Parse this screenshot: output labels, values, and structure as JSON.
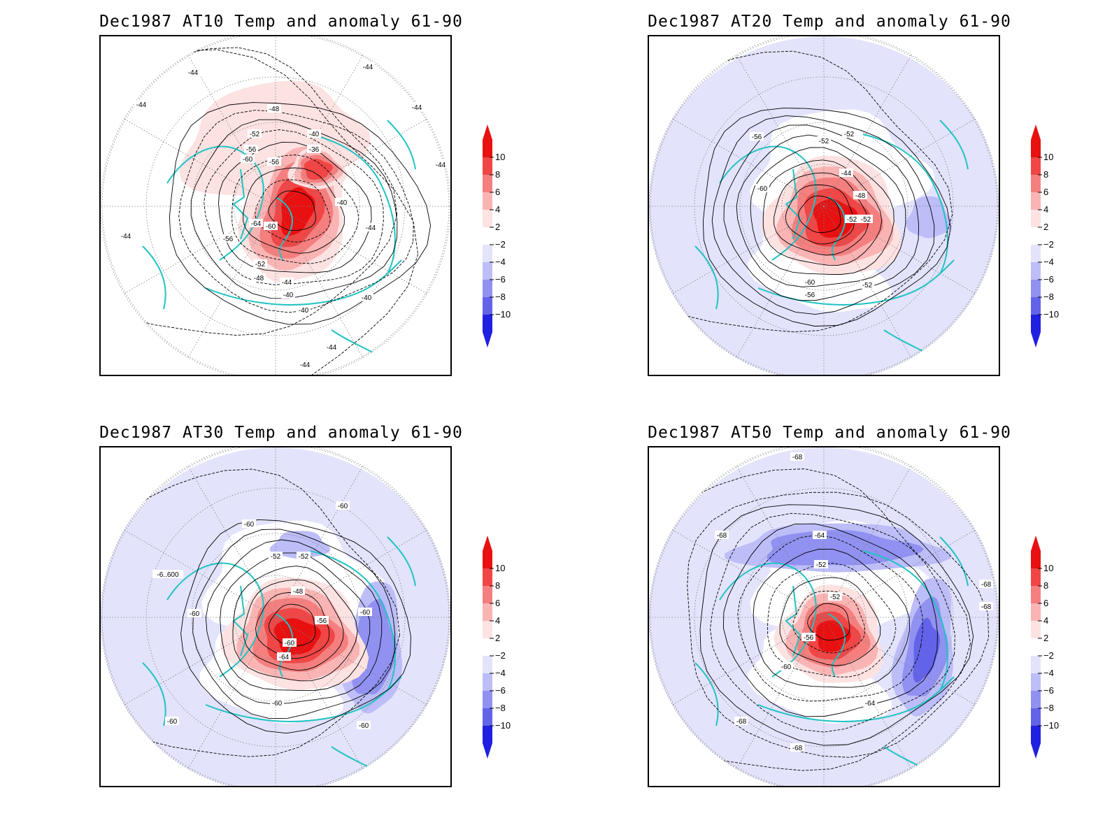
{
  "colors": {
    "pos": [
      "#fde2e2",
      "#fab4b4",
      "#f57f7f",
      "#f04646",
      "#e81010"
    ],
    "neg": [
      "#e3e3fc",
      "#bdbdf8",
      "#9191f1",
      "#6363ea",
      "#2020e0"
    ],
    "coast": "#20c3c3",
    "contour": "#000000"
  },
  "colorbar": {
    "ticks": [
      "10",
      "8",
      "6",
      "4",
      "2",
      "−2",
      "−4",
      "−6",
      "−8",
      "−10"
    ]
  },
  "panels": [
    {
      "title": "Dec1987 AT10 Temp and anomaly 61-90",
      "labels": [
        "-44",
        "-44",
        "-44",
        "-44",
        "-44",
        "-48",
        "-52",
        "-56",
        "-60",
        "-60",
        "-64",
        "-56",
        "-52",
        "-48",
        "-44",
        "-40",
        "-40",
        "-36",
        "-40",
        "-44",
        "-40",
        "-44",
        "-44",
        "-44",
        "-40",
        "-56"
      ]
    },
    {
      "title": "Dec1987 AT20 Temp and anomaly 61-90",
      "labels": [
        "-56",
        "-52",
        "-52",
        "-60",
        "-44",
        "-48",
        "-52",
        "-52",
        "-60",
        "-56",
        "-52"
      ]
    },
    {
      "title": "Dec1987 AT30 Temp and anomaly 61-90",
      "labels": [
        "-60",
        "-60",
        "-6..600",
        "-60",
        "-52",
        "-52",
        "-48",
        "-56",
        "-60",
        "-64",
        "-60",
        "-60",
        "-60",
        "-60"
      ]
    },
    {
      "title": "Dec1987 AT50 Temp and anomaly 61-90",
      "labels": [
        "-68",
        "-68",
        "-64",
        "-52",
        "-52",
        "-56",
        "-60",
        "-64",
        "-68",
        "-68",
        "-68",
        "-68"
      ]
    }
  ]
}
